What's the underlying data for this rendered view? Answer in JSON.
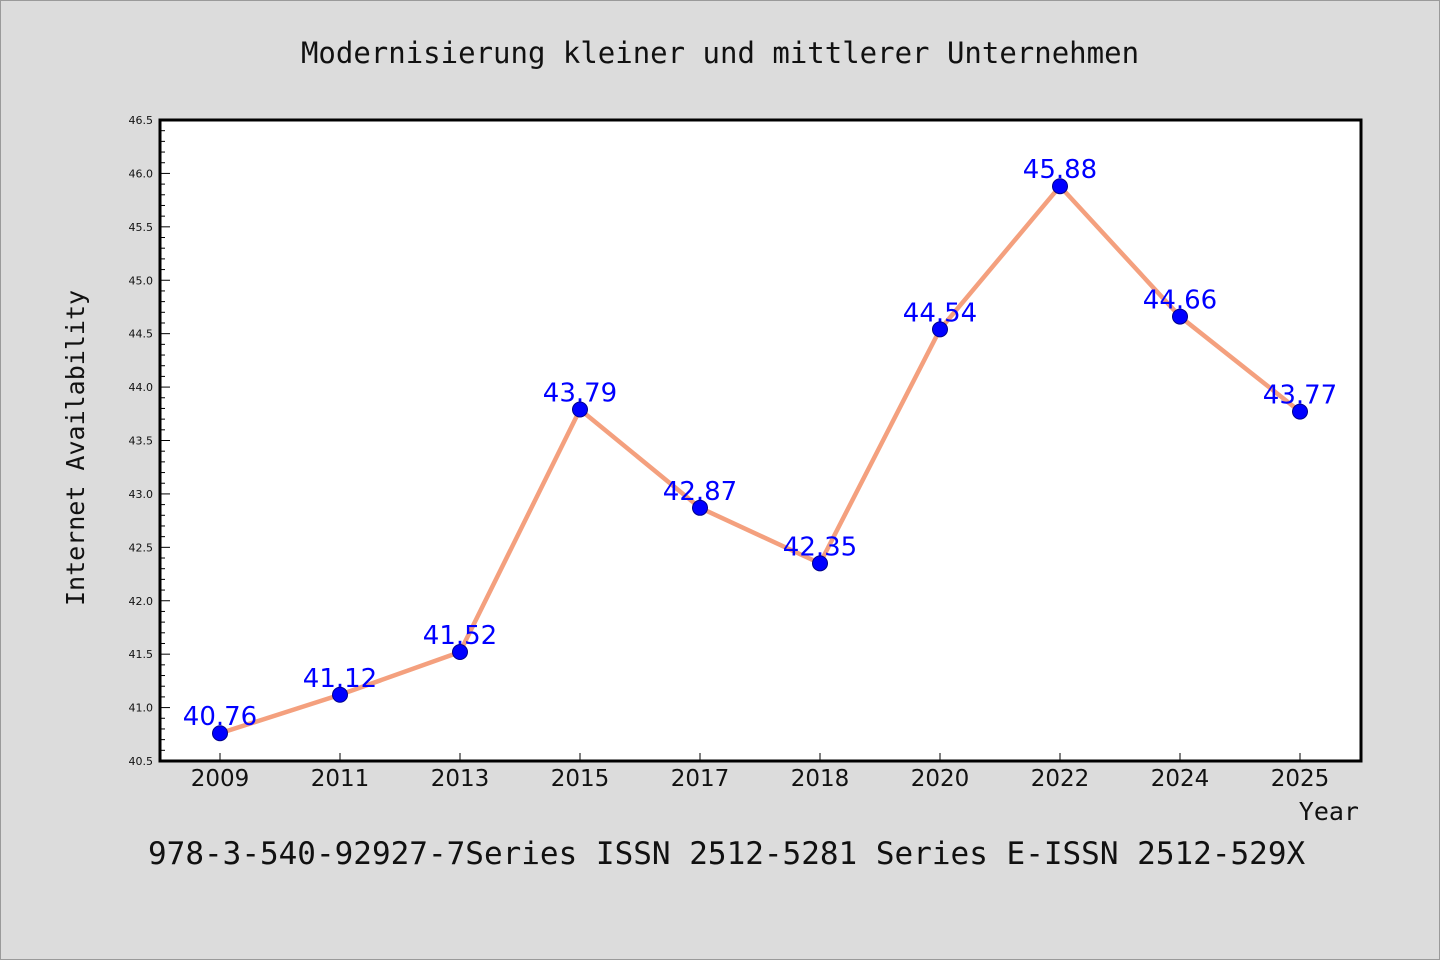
{
  "chart_data": {
    "type": "line",
    "title": "Modernisierung kleiner und mittlerer Unternehmen",
    "xlabel": "Year",
    "ylabel": "Internet Availability",
    "categories": [
      "2009",
      "2011",
      "2013",
      "2015",
      "2017",
      "2018",
      "2020",
      "2022",
      "2024",
      "2025"
    ],
    "series": [
      {
        "values": [
          40.76,
          41.12,
          41.52,
          43.79,
          42.87,
          42.35,
          44.54,
          45.88,
          44.66,
          43.77
        ],
        "labels": [
          "40.76",
          "41.12",
          "41.52",
          "43.79",
          "42.87",
          "42.35",
          "44.54",
          "45.88",
          "44.66",
          "43.77"
        ],
        "line_color": "#f4a07e",
        "marker_color": "#0000ff"
      }
    ],
    "ylim": [
      40.5,
      46.5
    ],
    "yticks": [
      "40.5",
      "41.0",
      "41.5",
      "42.0",
      "42.5",
      "43.0",
      "43.5",
      "44.0",
      "44.5",
      "45.0",
      "45.5",
      "46.0",
      "46.5"
    ],
    "grid": false,
    "legend": "none"
  },
  "footer": "978-3-540-92927-7Series ISSN 2512-5281 Series E-ISSN 2512-529X",
  "colors": {
    "background": "#dcdcdc",
    "plot_background": "#ffffff",
    "line": "#f4a07e",
    "marker": "#0000ff",
    "data_label": "#0000ff"
  }
}
